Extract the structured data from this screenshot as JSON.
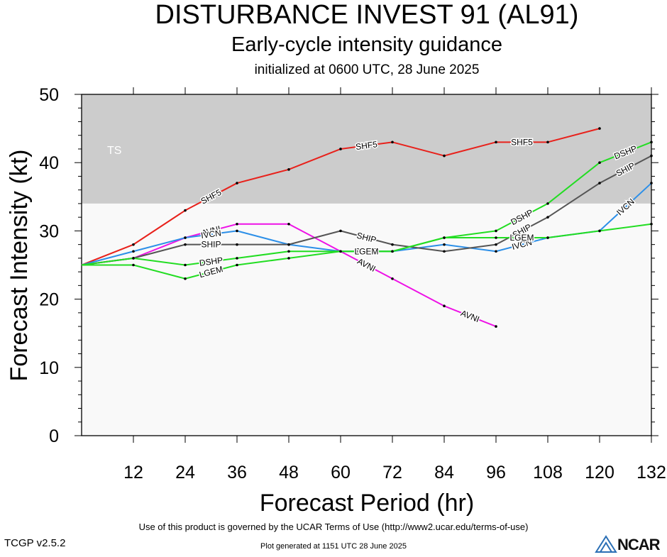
{
  "title": "DISTURBANCE INVEST 91 (AL91)",
  "subtitle": "Early-cycle intensity guidance",
  "init_line": "initialized at 0600 UTC, 28 June 2025",
  "footer": {
    "version": "TCGP v2.5.2",
    "terms": "Use of this product is governed by the UCAR Terms of Use (http://www2.ucar.edu/terms-of-use)",
    "generated": "Plot generated at 1151 UTC   28 June 2025",
    "logo_text": "NCAR"
  },
  "chart_data": {
    "type": "line",
    "xlabel": "Forecast Period (hr)",
    "ylabel": "Forecast Intensity (kt)",
    "xlim": [
      0,
      132
    ],
    "ylim": [
      0,
      50
    ],
    "xticks": [
      12,
      24,
      36,
      48,
      60,
      72,
      84,
      96,
      108,
      120,
      132
    ],
    "yticks": [
      0,
      10,
      20,
      30,
      40,
      50
    ],
    "bands": [
      {
        "label": "TS",
        "from": 34,
        "to": 50,
        "color": "#cccccc"
      },
      {
        "label": "",
        "from": 0,
        "to": 34,
        "color": "#f9f9f9"
      }
    ],
    "grid": false,
    "series": [
      {
        "name": "SHF5",
        "color": "#e8211b",
        "x": [
          0,
          12,
          24,
          36,
          48,
          60,
          72,
          84,
          96,
          108,
          120
        ],
        "y": [
          25,
          28,
          33,
          37,
          39,
          42,
          43,
          41,
          43,
          43,
          45
        ],
        "label_at": [
          24,
          60,
          96
        ]
      },
      {
        "name": "AVNI",
        "color": "#ee12e6",
        "x": [
          0,
          12,
          24,
          36,
          48,
          60,
          72,
          84,
          96
        ],
        "y": [
          25,
          26,
          29,
          31,
          31,
          27,
          23,
          19,
          16
        ],
        "label_at": [
          24,
          60,
          84
        ]
      },
      {
        "name": "IVCN",
        "color": "#2c8fe8",
        "x": [
          0,
          12,
          24,
          36,
          48,
          60,
          72,
          84,
          96,
          108,
          120,
          132
        ],
        "y": [
          25,
          27,
          29,
          30,
          28,
          27,
          27,
          28,
          27,
          29,
          30,
          37
        ],
        "label_at": [
          24,
          60,
          96,
          120
        ]
      },
      {
        "name": "SHIP",
        "color": "#555555",
        "x": [
          0,
          12,
          24,
          36,
          48,
          60,
          72,
          84,
          96,
          108,
          120,
          132
        ],
        "y": [
          25,
          26,
          28,
          28,
          28,
          30,
          28,
          27,
          28,
          32,
          37,
          41
        ],
        "label_at": [
          24,
          60,
          96,
          120
        ]
      },
      {
        "name": "DSHP",
        "color": "#22dd22",
        "x": [
          0,
          12,
          24,
          36,
          48,
          60,
          72,
          84,
          96,
          108,
          120,
          132
        ],
        "y": [
          25,
          26,
          25,
          26,
          27,
          27,
          27,
          29,
          30,
          34,
          40,
          43
        ],
        "label_at": [
          24,
          60,
          96,
          120
        ]
      },
      {
        "name": "LGEM",
        "color": "#22dd22",
        "x": [
          0,
          12,
          24,
          36,
          48,
          60,
          72,
          84,
          96,
          108,
          120,
          132
        ],
        "y": [
          25,
          25,
          23,
          25,
          26,
          27,
          27,
          29,
          29,
          29,
          30,
          31
        ],
        "label_at": [
          24,
          60,
          96
        ]
      }
    ]
  }
}
